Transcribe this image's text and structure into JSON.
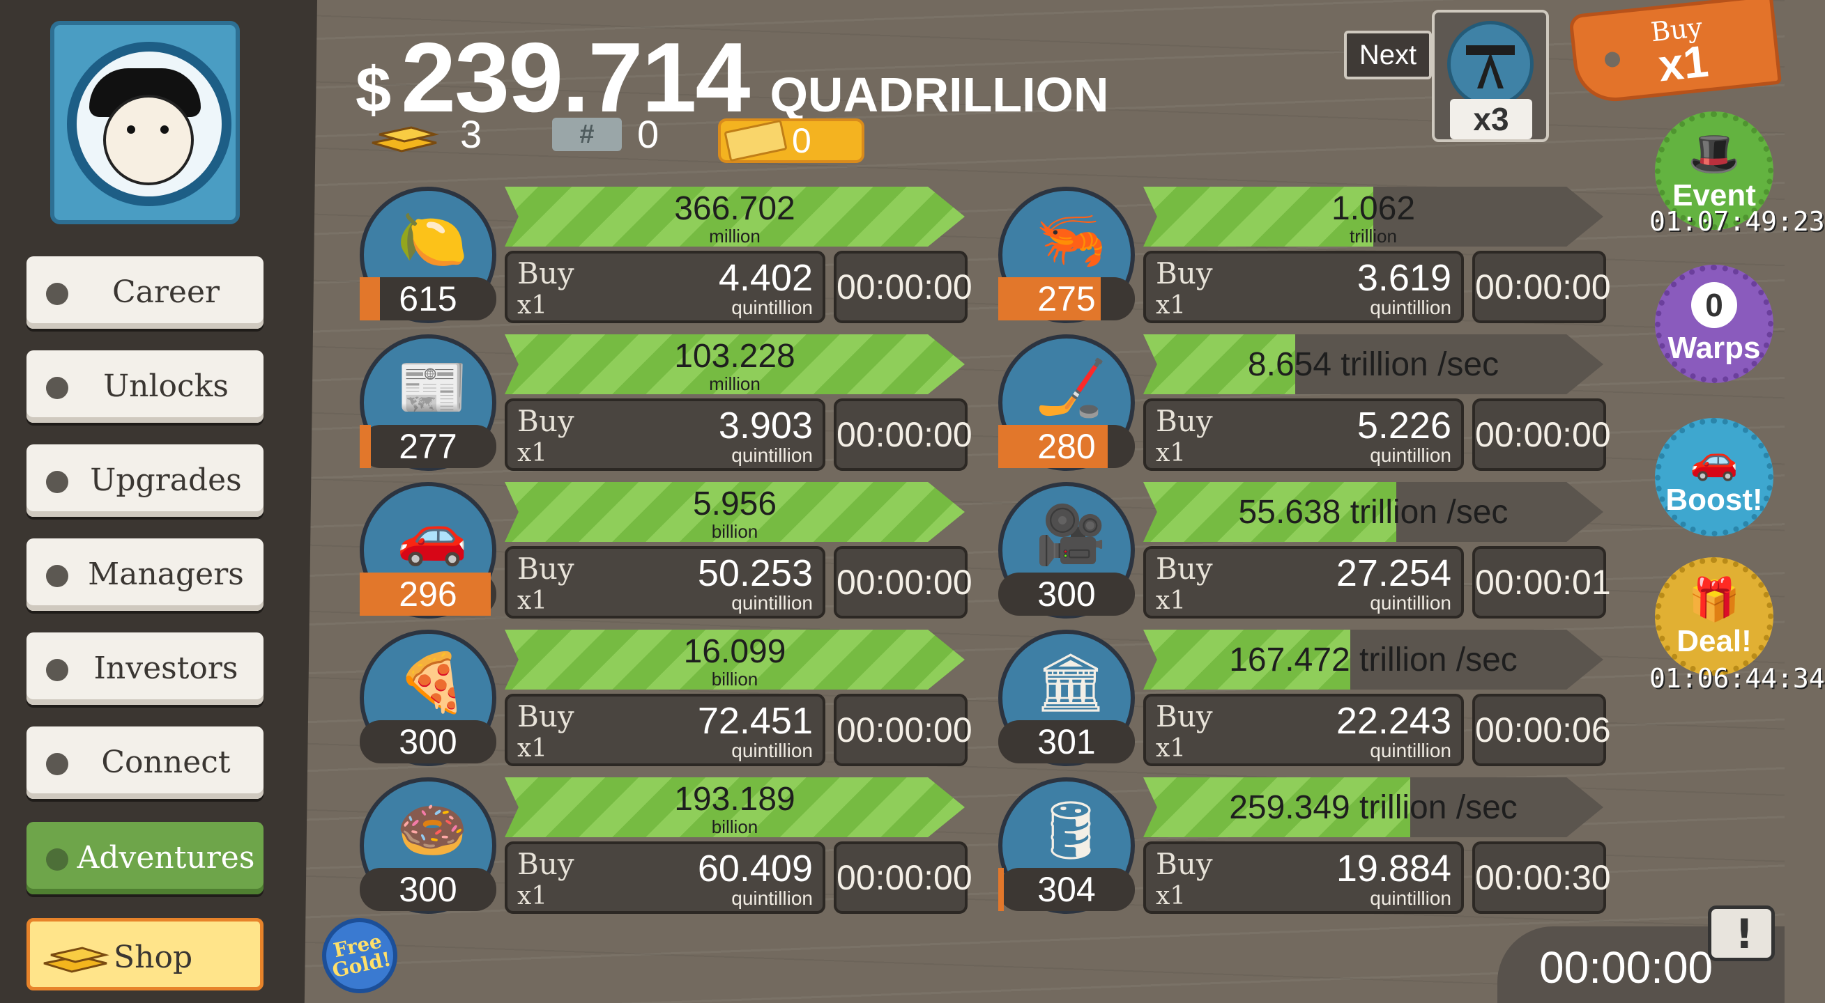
{
  "header": {
    "currency_symbol": "$",
    "money_value": "239.714",
    "money_unit": "QUADRILLION",
    "gold_count": "3",
    "mega_bucks": "0",
    "mega_tickets": "0",
    "next_label": "Next",
    "next_multiplier": "x3",
    "buy_label": "Buy",
    "buy_multiplier": "x1"
  },
  "sidebar": {
    "items": [
      {
        "label": "Career"
      },
      {
        "label": "Unlocks"
      },
      {
        "label": "Upgrades"
      },
      {
        "label": "Managers"
      },
      {
        "label": "Investors"
      },
      {
        "label": "Connect"
      },
      {
        "label": "Adventures"
      },
      {
        "label": "Shop"
      }
    ],
    "free_gold_label": "Free Gold!"
  },
  "badges": {
    "event_label": "Event",
    "event_timer": "01:07:49:23",
    "warps_count": "0",
    "warps_label": "Warps",
    "boost_label": "Boost!",
    "deal_label": "Deal!",
    "deal_timer": "01:06:44:34"
  },
  "tv_timer": "00:00:00",
  "businesses": [
    {
      "name": "lemon",
      "glyph": "🍋",
      "count": "615",
      "count_progress": 0.15,
      "revenue": "366.702",
      "revenue_unit": "million",
      "progress": 1.0,
      "buy_label": "Buy",
      "buy_mult": "x1",
      "cost": "4.402",
      "cost_unit": "quintillion",
      "timer": "00:00:00"
    },
    {
      "name": "newspaper",
      "glyph": "📰",
      "count": "277",
      "count_progress": 0.08,
      "revenue": "103.228",
      "revenue_unit": "million",
      "progress": 1.0,
      "buy_label": "Buy",
      "buy_mult": "x1",
      "cost": "3.903",
      "cost_unit": "quintillion",
      "timer": "00:00:00"
    },
    {
      "name": "car-wash",
      "glyph": "🚗",
      "count": "296",
      "count_progress": 0.96,
      "revenue": "5.956",
      "revenue_unit": "billion",
      "progress": 1.0,
      "buy_label": "Buy",
      "buy_mult": "x1",
      "cost": "50.253",
      "cost_unit": "quintillion",
      "timer": "00:00:00"
    },
    {
      "name": "pizza",
      "glyph": "🍕",
      "count": "300",
      "count_progress": 0.0,
      "revenue": "16.099",
      "revenue_unit": "billion",
      "progress": 1.0,
      "buy_label": "Buy",
      "buy_mult": "x1",
      "cost": "72.451",
      "cost_unit": "quintillion",
      "timer": "00:00:00"
    },
    {
      "name": "donut",
      "glyph": "🍩",
      "count": "300",
      "count_progress": 0.0,
      "revenue": "193.189",
      "revenue_unit": "billion",
      "progress": 1.0,
      "buy_label": "Buy",
      "buy_mult": "x1",
      "cost": "60.409",
      "cost_unit": "quintillion",
      "timer": "00:00:00"
    },
    {
      "name": "shrimp",
      "glyph": "🦐",
      "count": "275",
      "count_progress": 0.75,
      "revenue": "1.062",
      "revenue_unit": "trillion",
      "progress": 0.5,
      "buy_label": "Buy",
      "buy_mult": "x1",
      "cost": "3.619",
      "cost_unit": "quintillion",
      "timer": "00:00:00"
    },
    {
      "name": "hockey",
      "glyph": "🏒",
      "count": "280",
      "count_progress": 0.8,
      "revenue": "8.654 trillion /sec",
      "revenue_unit": "",
      "progress": 0.33,
      "buy_label": "Buy",
      "buy_mult": "x1",
      "cost": "5.226",
      "cost_unit": "quintillion",
      "timer": "00:00:00"
    },
    {
      "name": "movie",
      "glyph": "🎥",
      "count": "300",
      "count_progress": 0.0,
      "revenue": "55.638 trillion /sec",
      "revenue_unit": "",
      "progress": 0.55,
      "buy_label": "Buy",
      "buy_mult": "x1",
      "cost": "27.254",
      "cost_unit": "quintillion",
      "timer": "00:00:01"
    },
    {
      "name": "bank",
      "glyph": "🏛",
      "count": "301",
      "count_progress": 0.0,
      "revenue": "167.472 trillion /sec",
      "revenue_unit": "",
      "progress": 0.45,
      "buy_label": "Buy",
      "buy_mult": "x1",
      "cost": "22.243",
      "cost_unit": "quintillion",
      "timer": "00:00:06"
    },
    {
      "name": "oil",
      "glyph": "🛢",
      "count": "304",
      "count_progress": 0.04,
      "revenue": "259.349 trillion /sec",
      "revenue_unit": "",
      "progress": 0.58,
      "buy_label": "Buy",
      "buy_mult": "x1",
      "cost": "19.884",
      "cost_unit": "quintillion",
      "timer": "00:00:30"
    }
  ],
  "colors": {
    "accent_orange": "#e2772b",
    "bar_green": "#8fce5a",
    "panel_dark": "#4a4540",
    "background": "#736a5f"
  }
}
